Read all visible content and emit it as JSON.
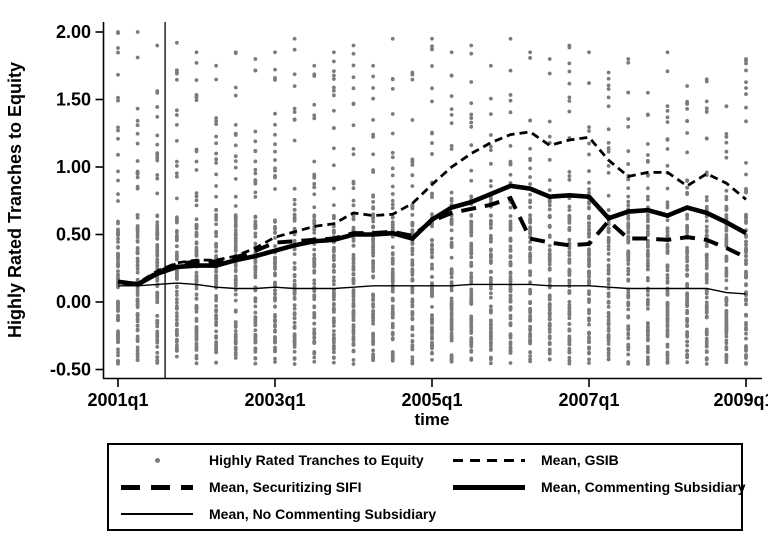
{
  "y_axis": {
    "title": "Highly Rated Tranches to Equity",
    "tick_labels": [
      "2.00",
      "1.50",
      "1.00",
      "0.50",
      "0.00",
      "-0.50"
    ],
    "tick_values": [
      2.0,
      1.5,
      1.0,
      0.5,
      0.0,
      -0.5
    ]
  },
  "x_axis": {
    "title": "time",
    "tick_labels": [
      "2001q1",
      "2003q1",
      "2005q1",
      "2007q1",
      "2009q1"
    ],
    "tick_indices": [
      0,
      8,
      16,
      24,
      32
    ]
  },
  "legend": {
    "items": [
      {
        "label": "Highly Rated Tranches to Equity",
        "marker": "dot"
      },
      {
        "label": "Mean, GSIB",
        "marker": "short-dash"
      },
      {
        "label": "Mean, Securitizing SIFI",
        "marker": "long-dash"
      },
      {
        "label": "Mean, Commenting Subsidiary",
        "marker": "thick-solid"
      },
      {
        "label": "Mean, No Commenting Subsidiary",
        "marker": "thin-solid"
      }
    ]
  },
  "chart_data": {
    "type": "scatter",
    "title": "",
    "xlabel": "time",
    "ylabel": "Highly Rated Tranches to Equity",
    "ylim": [
      -0.5,
      2.0
    ],
    "grid": false,
    "legend_position": "bottom",
    "x_quarters": [
      "2001q1",
      "2001q2",
      "2001q3",
      "2001q4",
      "2002q1",
      "2002q2",
      "2002q3",
      "2002q4",
      "2003q1",
      "2003q2",
      "2003q3",
      "2003q4",
      "2004q1",
      "2004q2",
      "2004q3",
      "2004q4",
      "2005q1",
      "2005q2",
      "2005q3",
      "2005q4",
      "2006q1",
      "2006q2",
      "2006q3",
      "2006q4",
      "2007q1",
      "2007q2",
      "2007q3",
      "2007q4",
      "2008q1",
      "2008q2",
      "2008q3",
      "2008q4",
      "2009q1"
    ],
    "event_line_x": 2.4,
    "series": [
      {
        "name": "Mean, GSIB",
        "style": "short-dash",
        "color": "#000000",
        "values": [
          0.15,
          0.14,
          0.23,
          0.29,
          0.31,
          0.31,
          0.34,
          0.4,
          0.48,
          0.52,
          0.56,
          0.58,
          0.66,
          0.64,
          0.65,
          0.73,
          0.87,
          1.0,
          1.1,
          1.18,
          1.24,
          1.26,
          1.16,
          1.2,
          1.22,
          1.05,
          0.93,
          0.96,
          0.96,
          0.86,
          0.95,
          0.88,
          0.76
        ]
      },
      {
        "name": "Mean, Securitizing SIFI",
        "style": "long-dash",
        "color": "#000000",
        "values": [
          0.15,
          0.13,
          0.22,
          0.28,
          0.3,
          0.3,
          0.33,
          0.38,
          0.44,
          0.45,
          0.46,
          0.47,
          0.51,
          0.51,
          0.52,
          0.49,
          0.6,
          0.66,
          0.69,
          0.72,
          0.77,
          0.47,
          0.44,
          0.42,
          0.43,
          0.6,
          0.47,
          0.47,
          0.46,
          0.48,
          0.46,
          0.4,
          0.33
        ]
      },
      {
        "name": "Mean, Commenting Subsidiary",
        "style": "thick-solid",
        "color": "#000000",
        "values": [
          0.15,
          0.13,
          0.21,
          0.26,
          0.27,
          0.27,
          0.31,
          0.34,
          0.38,
          0.42,
          0.45,
          0.46,
          0.5,
          0.5,
          0.51,
          0.47,
          0.61,
          0.7,
          0.74,
          0.8,
          0.86,
          0.84,
          0.78,
          0.79,
          0.78,
          0.62,
          0.67,
          0.68,
          0.64,
          0.7,
          0.66,
          0.59,
          0.51
        ]
      },
      {
        "name": "Mean, No Commenting Subsidiary",
        "style": "thin-solid",
        "color": "#000000",
        "values": [
          0.12,
          0.12,
          0.13,
          0.14,
          0.13,
          0.11,
          0.1,
          0.1,
          0.11,
          0.1,
          0.1,
          0.1,
          0.11,
          0.12,
          0.12,
          0.12,
          0.12,
          0.12,
          0.13,
          0.13,
          0.13,
          0.13,
          0.12,
          0.12,
          0.12,
          0.11,
          0.1,
          0.1,
          0.1,
          0.1,
          0.1,
          0.07,
          0.06
        ]
      }
    ],
    "scatter": {
      "name": "Highly Rated Tranches to Equity",
      "color": "#7b7b7b",
      "seed": 42,
      "dense_range": [
        -0.3,
        0.65
      ],
      "dense_count": 58,
      "low_range": [
        -0.46,
        -0.28
      ],
      "low_count": 9,
      "sparse_base": 0.68,
      "sparse_count": 15,
      "column_top": [
        2.0,
        2.0,
        1.9,
        1.92,
        1.85,
        1.75,
        1.85,
        1.8,
        1.85,
        1.95,
        1.75,
        1.85,
        1.9,
        1.75,
        1.95,
        1.7,
        1.95,
        1.85,
        1.9,
        1.75,
        1.95,
        1.85,
        1.8,
        1.9,
        1.85,
        1.7,
        1.8,
        1.55,
        1.85,
        1.6,
        1.65,
        1.45,
        1.8
      ]
    }
  }
}
